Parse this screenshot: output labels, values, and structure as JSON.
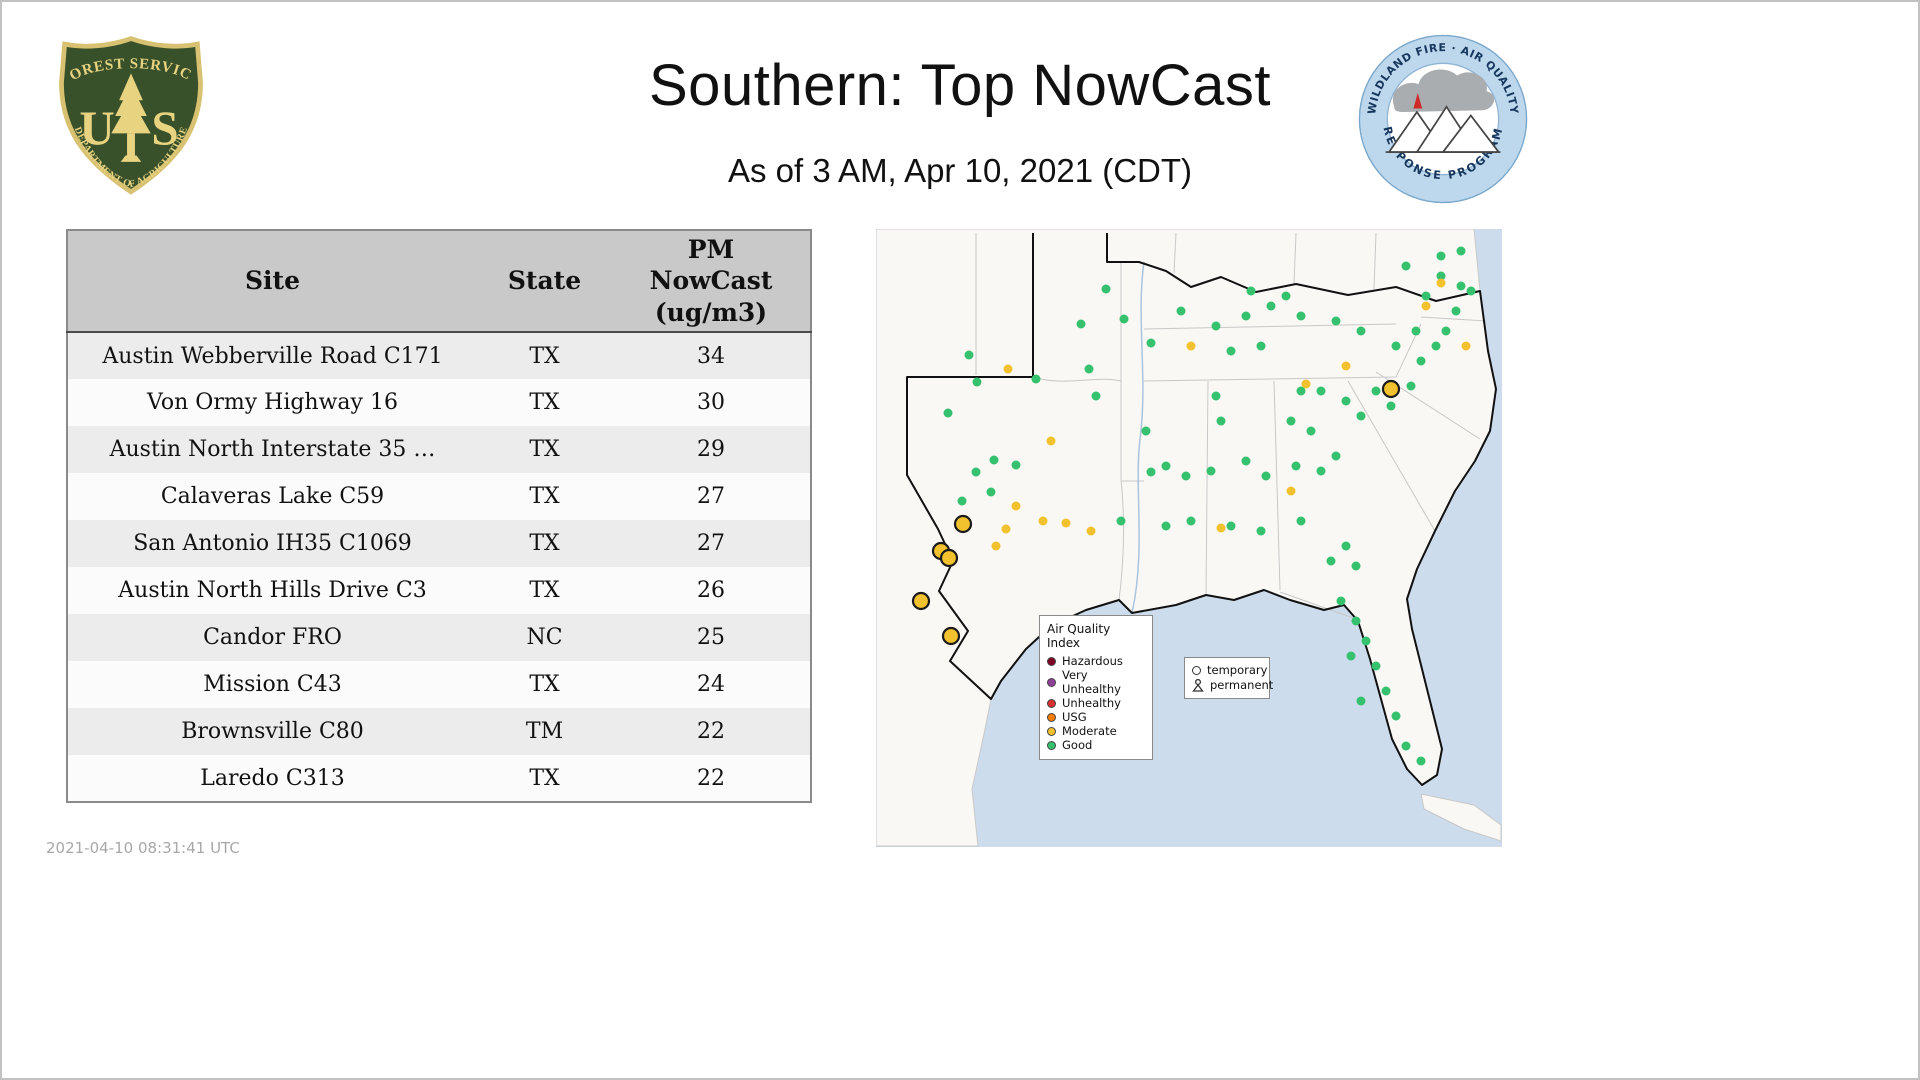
{
  "header": {
    "title": "Southern: Top NowCast",
    "subtitle": "As of  3 AM, Apr 10, 2021 (CDT)"
  },
  "logos": {
    "forest_service": {
      "banner_top": "FOREST SERVICE",
      "letter_left": "U",
      "letter_right": "S",
      "banner_bottom": "DEPARTMENT OF AGRICULTURE"
    },
    "airfire": {
      "arc_top": "WILDLAND FIRE · AIR QUALITY",
      "arc_bottom": "RESPONSE PROGRAM"
    }
  },
  "table": {
    "columns": [
      {
        "label": "Site"
      },
      {
        "label": "State"
      },
      {
        "label": "PM\nNowCast\n(ug/m3)"
      }
    ],
    "rows": [
      {
        "site": "Austin Webberville Road C171",
        "state": "TX",
        "value": 34
      },
      {
        "site": "Von Ormy Highway 16",
        "state": "TX",
        "value": 30
      },
      {
        "site": "Austin North Interstate 35 …",
        "state": "TX",
        "value": 29
      },
      {
        "site": "Calaveras Lake C59",
        "state": "TX",
        "value": 27
      },
      {
        "site": "San Antonio IH35 C1069",
        "state": "TX",
        "value": 27
      },
      {
        "site": "Austin North Hills Drive C3",
        "state": "TX",
        "value": 26
      },
      {
        "site": "Candor FRO",
        "state": "NC",
        "value": 25
      },
      {
        "site": "Mission C43",
        "state": "TX",
        "value": 24
      },
      {
        "site": "Brownsville C80",
        "state": "TM",
        "value": 22
      },
      {
        "site": "Laredo C313",
        "state": "TX",
        "value": 22
      }
    ]
  },
  "map": {
    "legend": {
      "title": "Air Quality Index",
      "items": [
        {
          "label": "Hazardous",
          "color": "#7e0023"
        },
        {
          "label": "Very Unhealthy",
          "color": "#8f3f97"
        },
        {
          "label": "Unhealthy",
          "color": "#d7302f"
        },
        {
          "label": "USG",
          "color": "#f57c00"
        },
        {
          "label": "Moderate",
          "color": "#f2c12e"
        },
        {
          "label": "Good",
          "color": "#35c16d"
        }
      ]
    },
    "marker_legend": {
      "items": [
        {
          "label": "temporary"
        },
        {
          "label": "permanent"
        }
      ]
    },
    "colors": {
      "good": "#35c16d",
      "moderate": "#f2c12e",
      "permanent_ring": "#1a1a1a",
      "water": "#ccdcec",
      "land": "#faf8f5"
    },
    "points": {
      "good": [
        [
          93,
          126
        ],
        [
          101,
          153
        ],
        [
          160,
          150
        ],
        [
          72,
          184
        ],
        [
          118,
          231
        ],
        [
          100,
          243
        ],
        [
          115,
          263
        ],
        [
          140,
          236
        ],
        [
          86,
          272
        ],
        [
          220,
          167
        ],
        [
          213,
          140
        ],
        [
          248,
          90
        ],
        [
          230,
          60
        ],
        [
          205,
          95
        ],
        [
          275,
          114
        ],
        [
          305,
          82
        ],
        [
          340,
          97
        ],
        [
          370,
          87
        ],
        [
          375,
          62
        ],
        [
          410,
          67
        ],
        [
          355,
          122
        ],
        [
          385,
          117
        ],
        [
          340,
          167
        ],
        [
          345,
          192
        ],
        [
          270,
          202
        ],
        [
          290,
          237
        ],
        [
          275,
          243
        ],
        [
          310,
          247
        ],
        [
          335,
          242
        ],
        [
          370,
          232
        ],
        [
          390,
          247
        ],
        [
          420,
          237
        ],
        [
          445,
          242
        ],
        [
          460,
          227
        ],
        [
          415,
          192
        ],
        [
          435,
          202
        ],
        [
          425,
          162
        ],
        [
          445,
          162
        ],
        [
          470,
          172
        ],
        [
          485,
          187
        ],
        [
          500,
          162
        ],
        [
          515,
          177
        ],
        [
          535,
          157
        ],
        [
          545,
          132
        ],
        [
          560,
          117
        ],
        [
          570,
          102
        ],
        [
          580,
          82
        ],
        [
          585,
          57
        ],
        [
          565,
          47
        ],
        [
          595,
          62
        ],
        [
          395,
          77
        ],
        [
          425,
          87
        ],
        [
          460,
          92
        ],
        [
          485,
          102
        ],
        [
          520,
          117
        ],
        [
          540,
          102
        ],
        [
          550,
          67
        ],
        [
          530,
          37
        ],
        [
          565,
          27
        ],
        [
          585,
          22
        ],
        [
          245,
          292
        ],
        [
          290,
          297
        ],
        [
          315,
          292
        ],
        [
          355,
          297
        ],
        [
          385,
          302
        ],
        [
          425,
          292
        ],
        [
          455,
          332
        ],
        [
          470,
          317
        ],
        [
          480,
          337
        ],
        [
          465,
          372
        ],
        [
          480,
          392
        ],
        [
          490,
          412
        ],
        [
          475,
          427
        ],
        [
          500,
          437
        ],
        [
          510,
          462
        ],
        [
          520,
          487
        ],
        [
          485,
          472
        ],
        [
          530,
          517
        ],
        [
          545,
          532
        ]
      ],
      "moderate": [
        [
          132,
          140
        ],
        [
          175,
          212
        ],
        [
          140,
          277
        ],
        [
          167,
          292
        ],
        [
          190,
          294
        ],
        [
          215,
          302
        ],
        [
          120,
          317
        ],
        [
          130,
          300
        ],
        [
          315,
          117
        ],
        [
          430,
          155
        ],
        [
          470,
          137
        ],
        [
          565,
          54
        ],
        [
          590,
          117
        ],
        [
          550,
          77
        ],
        [
          415,
          262
        ],
        [
          345,
          299
        ]
      ],
      "moderate_permanent": [
        [
          87,
          295
        ],
        [
          65,
          322
        ],
        [
          73,
          329
        ],
        [
          45,
          372
        ],
        [
          75,
          407
        ],
        [
          515,
          160
        ]
      ]
    }
  },
  "footer": {
    "timestamp": "2021-04-10 08:31:41 UTC"
  }
}
